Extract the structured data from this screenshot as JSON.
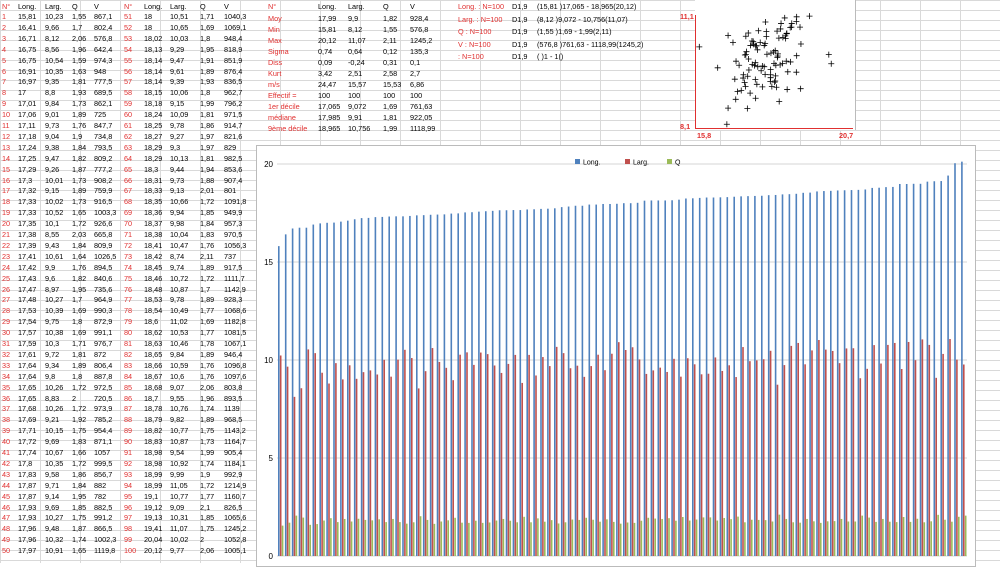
{
  "left_table": {
    "headers": [
      "N°",
      "Long.",
      "Larg.",
      "Q",
      "V",
      "N°",
      "Long.",
      "Larg.",
      "Q",
      "V"
    ],
    "rows": [
      [
        "1",
        "15,81",
        "10,23",
        "1,55",
        "867,1",
        "51",
        "18",
        "10,51",
        "1,71",
        "1040,3"
      ],
      [
        "2",
        "16,41",
        "9,66",
        "1,7",
        "802,4",
        "52",
        "18",
        "10,65",
        "1,69",
        "1069,1"
      ],
      [
        "3",
        "16,71",
        "8,12",
        "2,06",
        "576,8",
        "53",
        "18,02",
        "10,03",
        "1,8",
        "948,4"
      ],
      [
        "4",
        "16,75",
        "8,56",
        "1,96",
        "642,4",
        "54",
        "18,13",
        "9,29",
        "1,95",
        "818,9"
      ],
      [
        "5",
        "16,75",
        "10,54",
        "1,59",
        "974,3",
        "55",
        "18,14",
        "9,47",
        "1,91",
        "851,9"
      ],
      [
        "6",
        "16,91",
        "10,35",
        "1,63",
        "948",
        "56",
        "18,14",
        "9,61",
        "1,89",
        "876,4"
      ],
      [
        "7",
        "16,97",
        "9,35",
        "1,81",
        "777,5",
        "57",
        "18,14",
        "9,39",
        "1,93",
        "836,5"
      ],
      [
        "8",
        "17",
        "8,8",
        "1,93",
        "689,5",
        "58",
        "18,15",
        "10,06",
        "1,8",
        "962,7"
      ],
      [
        "9",
        "17,01",
        "9,84",
        "1,73",
        "862,1",
        "59",
        "18,18",
        "9,15",
        "1,99",
        "796,2"
      ],
      [
        "10",
        "17,06",
        "9,01",
        "1,89",
        "725",
        "60",
        "18,24",
        "10,09",
        "1,81",
        "971,5"
      ],
      [
        "11",
        "17,11",
        "9,73",
        "1,76",
        "847,7",
        "61",
        "18,25",
        "9,78",
        "1,86",
        "914,7"
      ],
      [
        "12",
        "17,18",
        "9,04",
        "1,9",
        "734,8",
        "62",
        "18,27",
        "9,27",
        "1,97",
        "821,6"
      ],
      [
        "13",
        "17,24",
        "9,38",
        "1,84",
        "793,5",
        "63",
        "18,29",
        "9,3",
        "1,97",
        "829"
      ],
      [
        "14",
        "17,25",
        "9,47",
        "1,82",
        "809,2",
        "64",
        "18,29",
        "10,13",
        "1,81",
        "982,5"
      ],
      [
        "15",
        "17,29",
        "9,26",
        "1,87",
        "777,2",
        "65",
        "18,3",
        "9,44",
        "1,94",
        "853,6"
      ],
      [
        "16",
        "17,3",
        "10,01",
        "1,73",
        "908,2",
        "66",
        "18,31",
        "9,73",
        "1,88",
        "907,4"
      ],
      [
        "17",
        "17,32",
        "9,15",
        "1,89",
        "759,9",
        "67",
        "18,33",
        "9,13",
        "2,01",
        "801"
      ],
      [
        "18",
        "17,33",
        "10,02",
        "1,73",
        "916,5",
        "68",
        "18,35",
        "10,66",
        "1,72",
        "1091,8"
      ],
      [
        "19",
        "17,33",
        "10,52",
        "1,65",
        "1003,3",
        "69",
        "18,36",
        "9,94",
        "1,85",
        "949,9"
      ],
      [
        "20",
        "17,35",
        "10,1",
        "1,72",
        "926,6",
        "70",
        "18,37",
        "9,98",
        "1,84",
        "957,3"
      ],
      [
        "21",
        "17,38",
        "8,55",
        "2,03",
        "665,8",
        "71",
        "18,38",
        "10,04",
        "1,83",
        "970,5"
      ],
      [
        "22",
        "17,39",
        "9,43",
        "1,84",
        "809,9",
        "72",
        "18,41",
        "10,47",
        "1,76",
        "1056,3"
      ],
      [
        "23",
        "17,41",
        "10,61",
        "1,64",
        "1026,5",
        "73",
        "18,42",
        "8,74",
        "2,11",
        "737"
      ],
      [
        "24",
        "17,42",
        "9,9",
        "1,76",
        "894,5",
        "74",
        "18,45",
        "9,74",
        "1,89",
        "917,5"
      ],
      [
        "25",
        "17,43",
        "9,6",
        "1,82",
        "840,6",
        "75",
        "18,46",
        "10,72",
        "1,72",
        "1111,7"
      ],
      [
        "26",
        "17,47",
        "8,97",
        "1,95",
        "735,6",
        "76",
        "18,48",
        "10,87",
        "1,7",
        "1142,9"
      ],
      [
        "27",
        "17,48",
        "10,27",
        "1,7",
        "964,9",
        "77",
        "18,53",
        "9,78",
        "1,89",
        "928,3"
      ],
      [
        "28",
        "17,53",
        "10,39",
        "1,69",
        "990,3",
        "78",
        "18,54",
        "10,49",
        "1,77",
        "1068,6"
      ],
      [
        "29",
        "17,54",
        "9,75",
        "1,8",
        "872,9",
        "79",
        "18,6",
        "11,02",
        "1,69",
        "1182,8"
      ],
      [
        "30",
        "17,57",
        "10,38",
        "1,69",
        "991,1",
        "80",
        "18,62",
        "10,53",
        "1,77",
        "1081,5"
      ],
      [
        "31",
        "17,59",
        "10,3",
        "1,71",
        "976,7",
        "81",
        "18,63",
        "10,46",
        "1,78",
        "1067,1"
      ],
      [
        "32",
        "17,61",
        "9,72",
        "1,81",
        "872",
        "82",
        "18,65",
        "9,84",
        "1,89",
        "946,4"
      ],
      [
        "33",
        "17,64",
        "9,34",
        "1,89",
        "806,4",
        "83",
        "18,66",
        "10,59",
        "1,76",
        "1096,8"
      ],
      [
        "34",
        "17,64",
        "9,8",
        "1,8",
        "887,8",
        "84",
        "18,67",
        "10,6",
        "1,76",
        "1097,6"
      ],
      [
        "35",
        "17,65",
        "10,26",
        "1,72",
        "972,5",
        "85",
        "18,68",
        "9,07",
        "2,06",
        "803,8"
      ],
      [
        "36",
        "17,65",
        "8,83",
        "2",
        "720,5",
        "86",
        "18,7",
        "9,55",
        "1,96",
        "893,5"
      ],
      [
        "37",
        "17,68",
        "10,26",
        "1,72",
        "973,9",
        "87",
        "18,78",
        "10,76",
        "1,74",
        "1139"
      ],
      [
        "38",
        "17,69",
        "9,21",
        "1,92",
        "785,2",
        "88",
        "18,79",
        "9,82",
        "1,89",
        "968,5"
      ],
      [
        "39",
        "17,71",
        "10,15",
        "1,75",
        "954,4",
        "89",
        "18,82",
        "10,77",
        "1,75",
        "1143,2"
      ],
      [
        "40",
        "17,72",
        "9,69",
        "1,83",
        "871,1",
        "90",
        "18,83",
        "10,87",
        "1,73",
        "1164,7"
      ],
      [
        "41",
        "17,74",
        "10,67",
        "1,66",
        "1057",
        "91",
        "18,98",
        "9,54",
        "1,99",
        "905,4"
      ],
      [
        "42",
        "17,8",
        "10,35",
        "1,72",
        "999,5",
        "92",
        "18,98",
        "10,92",
        "1,74",
        "1184,1"
      ],
      [
        "43",
        "17,83",
        "9,58",
        "1,86",
        "856,7",
        "93",
        "18,99",
        "9,99",
        "1,9",
        "992,9"
      ],
      [
        "44",
        "17,87",
        "9,71",
        "1,84",
        "882",
        "94",
        "18,99",
        "11,05",
        "1,72",
        "1214,9"
      ],
      [
        "45",
        "17,87",
        "9,14",
        "1,95",
        "782",
        "95",
        "19,1",
        "10,77",
        "1,77",
        "1160,7"
      ],
      [
        "46",
        "17,93",
        "9,69",
        "1,85",
        "882,5",
        "96",
        "19,12",
        "9,09",
        "2,1",
        "826,5"
      ],
      [
        "47",
        "17,93",
        "10,27",
        "1,75",
        "991,2",
        "97",
        "19,13",
        "10,31",
        "1,85",
        "1065,6"
      ],
      [
        "48",
        "17,96",
        "9,48",
        "1,87",
        "866,5",
        "98",
        "19,41",
        "11,07",
        "1,75",
        "1245,2"
      ],
      [
        "49",
        "17,96",
        "10,32",
        "1,74",
        "1002,3",
        "99",
        "20,04",
        "10,02",
        "2",
        "1052,8"
      ],
      [
        "50",
        "17,97",
        "10,91",
        "1,65",
        "1119,8",
        "100",
        "20,12",
        "9,77",
        "2,06",
        "1005,1"
      ]
    ]
  },
  "stats_table": {
    "headers": [
      "N°",
      "Long.",
      "Larg.",
      "Q",
      "V"
    ],
    "rows": [
      [
        "Moy",
        "17,99",
        "9,9",
        "1,82",
        "928,4"
      ],
      [
        "Min",
        "15,81",
        "8,12",
        "1,55",
        "576,8"
      ],
      [
        "Max",
        "20,12",
        "11,07",
        "2,11",
        "1245,2"
      ],
      [
        "Sigma",
        "0,74",
        "0,64",
        "0,12",
        "135,3"
      ],
      [
        "Diss",
        "0,09",
        "-0,24",
        "0,31",
        "0,1"
      ],
      [
        "Kurt",
        "3,42",
        "2,51",
        "2,58",
        "2,7"
      ],
      [
        "m/s",
        "24,47",
        "15,57",
        "15,53",
        "6,86"
      ],
      [
        "Effectif =",
        "100",
        "100",
        "100",
        "100"
      ],
      [
        "1er décile",
        "17,065",
        "9,072",
        "1,69",
        "761,63"
      ],
      [
        "médiane",
        "17,985",
        "9,91",
        "1,81",
        "922,05"
      ],
      [
        "9ème décile",
        "18,965",
        "10,756",
        "1,99",
        "1118,99"
      ]
    ]
  },
  "summary": [
    {
      "label": "Long. : N=100",
      "code": "D1,9",
      "text": "(15,81 )17,065 - 18,965(20,12)"
    },
    {
      "label": "Larg. : N=100",
      "code": "D1,9",
      "text": "(8,12 )9,072 - 10,756(11,07)"
    },
    {
      "label": "Q : N=100",
      "code": "D1,9",
      "text": "(1,55 )1,69 - 1,99(2,11)"
    },
    {
      "label": "V : N=100",
      "code": "D1,9",
      "text": "(576,8 )761,63 - 1118,99(1245,2)"
    },
    {
      "label": " : N=100",
      "code": "D1,9",
      "text": "( )1 - 1()"
    }
  ],
  "scatter": {
    "y_top_label": "11,1",
    "y_bottom_label": "8,1",
    "x_left_label": "15,8",
    "x_right_label": "20,7"
  },
  "chart_data": {
    "type": "bar",
    "ylim": [
      0,
      20
    ],
    "y_ticks": [
      "0",
      "5",
      "10",
      "15",
      "20"
    ],
    "legend_position": "top",
    "series": [
      {
        "name": "Long.",
        "color": "#4f81bd"
      },
      {
        "name": "Larg.",
        "color": "#c0504d"
      },
      {
        "name": "Q",
        "color": "#9bbb59"
      }
    ],
    "long": [
      15.81,
      16.41,
      16.71,
      16.75,
      16.75,
      16.91,
      16.97,
      17,
      17.01,
      17.06,
      17.11,
      17.18,
      17.24,
      17.25,
      17.29,
      17.3,
      17.32,
      17.33,
      17.33,
      17.35,
      17.38,
      17.39,
      17.41,
      17.42,
      17.43,
      17.47,
      17.48,
      17.53,
      17.54,
      17.57,
      17.59,
      17.61,
      17.64,
      17.64,
      17.65,
      17.65,
      17.68,
      17.69,
      17.71,
      17.72,
      17.74,
      17.8,
      17.83,
      17.87,
      17.87,
      17.93,
      17.93,
      17.96,
      17.96,
      17.97,
      18,
      18,
      18.02,
      18.13,
      18.14,
      18.14,
      18.14,
      18.15,
      18.18,
      18.24,
      18.25,
      18.27,
      18.29,
      18.29,
      18.3,
      18.31,
      18.33,
      18.35,
      18.36,
      18.37,
      18.38,
      18.41,
      18.42,
      18.45,
      18.46,
      18.48,
      18.53,
      18.54,
      18.6,
      18.62,
      18.63,
      18.65,
      18.66,
      18.67,
      18.68,
      18.7,
      18.78,
      18.79,
      18.82,
      18.83,
      18.98,
      18.98,
      18.99,
      18.99,
      19.1,
      19.12,
      19.13,
      19.41,
      20.04,
      20.12
    ],
    "larg": [
      10.23,
      9.66,
      8.12,
      8.56,
      10.54,
      10.35,
      9.35,
      8.8,
      9.84,
      9.01,
      9.73,
      9.04,
      9.38,
      9.47,
      9.26,
      10.01,
      9.15,
      10.02,
      10.52,
      10.1,
      8.55,
      9.43,
      10.61,
      9.9,
      9.6,
      8.97,
      10.27,
      10.39,
      9.75,
      10.38,
      10.3,
      9.72,
      9.34,
      9.8,
      10.26,
      8.83,
      10.26,
      9.21,
      10.15,
      9.69,
      10.67,
      10.35,
      9.58,
      9.71,
      9.14,
      9.69,
      10.27,
      9.48,
      10.32,
      10.91,
      10.51,
      10.65,
      10.03,
      9.29,
      9.47,
      9.61,
      9.39,
      10.06,
      9.15,
      10.09,
      9.78,
      9.27,
      9.3,
      10.13,
      9.44,
      9.73,
      9.13,
      10.66,
      9.94,
      9.98,
      10.04,
      10.47,
      8.74,
      9.74,
      10.72,
      10.87,
      9.78,
      10.49,
      11.02,
      10.53,
      10.46,
      9.84,
      10.59,
      10.6,
      9.07,
      9.55,
      10.76,
      9.82,
      10.77,
      10.87,
      9.54,
      10.92,
      9.99,
      11.05,
      10.77,
      9.09,
      10.31,
      11.07,
      10.02,
      9.77
    ],
    "q": [
      1.55,
      1.7,
      2.06,
      1.96,
      1.59,
      1.63,
      1.81,
      1.93,
      1.73,
      1.89,
      1.76,
      1.9,
      1.84,
      1.82,
      1.87,
      1.73,
      1.89,
      1.73,
      1.65,
      1.72,
      2.03,
      1.84,
      1.64,
      1.76,
      1.82,
      1.95,
      1.7,
      1.69,
      1.8,
      1.69,
      1.71,
      1.81,
      1.89,
      1.8,
      1.72,
      2,
      1.72,
      1.92,
      1.75,
      1.83,
      1.66,
      1.72,
      1.86,
      1.84,
      1.95,
      1.85,
      1.75,
      1.87,
      1.74,
      1.65,
      1.71,
      1.69,
      1.8,
      1.95,
      1.91,
      1.89,
      1.93,
      1.8,
      1.99,
      1.81,
      1.86,
      1.97,
      1.97,
      1.81,
      1.94,
      1.88,
      2.01,
      1.72,
      1.85,
      1.84,
      1.83,
      1.76,
      2.11,
      1.89,
      1.72,
      1.7,
      1.89,
      1.77,
      1.69,
      1.77,
      1.78,
      1.89,
      1.76,
      1.76,
      2.06,
      1.96,
      1.74,
      1.89,
      1.75,
      1.73,
      1.99,
      1.74,
      1.9,
      1.72,
      1.77,
      2.1,
      1.85,
      1.75,
      2,
      2.06
    ]
  }
}
